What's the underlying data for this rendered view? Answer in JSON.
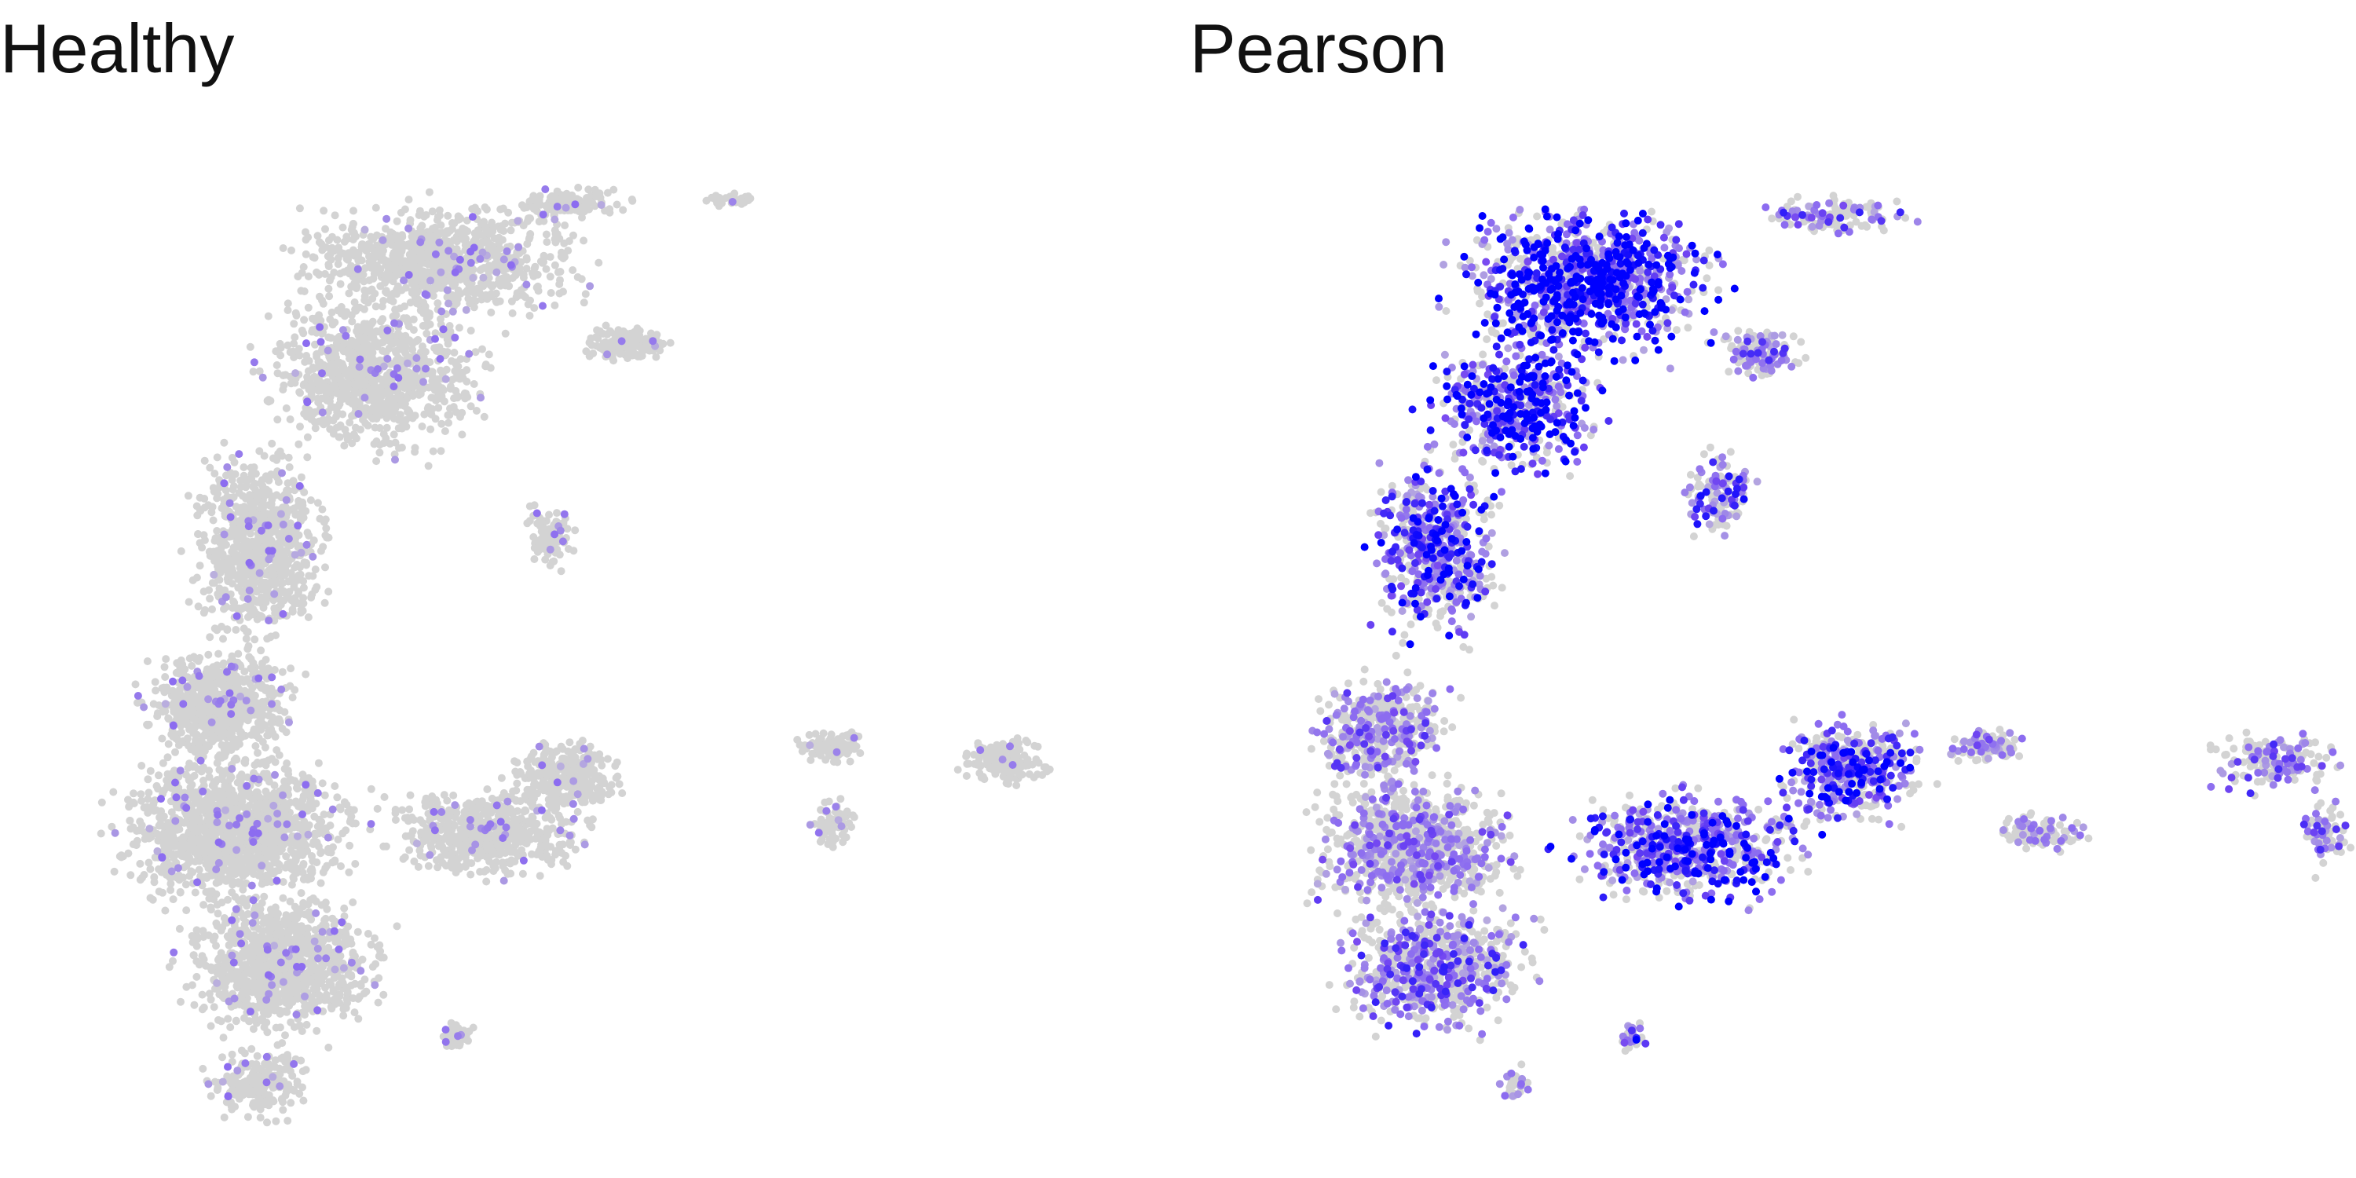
{
  "figure": {
    "background": "#ffffff",
    "base_point_color": "#d3d3d3",
    "high_point_color": "#0000ff"
  },
  "chart_data": [
    {
      "type": "scatter",
      "title": "Healthy",
      "xlabel": "",
      "ylabel": "",
      "axes_visible": false,
      "grid": false,
      "legend": "none",
      "color_scale": {
        "low": "#d3d3d3",
        "high": "#0000ff"
      },
      "expression_level": {
        "background_density": 1.0,
        "colored_fraction": 0.06,
        "max_intensity": 0.8
      }
    },
    {
      "type": "scatter",
      "title": "Pearson",
      "xlabel": "",
      "ylabel": "",
      "axes_visible": false,
      "grid": false,
      "legend": "none",
      "color_scale": {
        "low": "#d3d3d3",
        "high": "#0000ff"
      },
      "expression_level": {
        "background_density": 0.85,
        "colored_fraction": 0.55,
        "max_intensity": 1.0
      }
    }
  ]
}
